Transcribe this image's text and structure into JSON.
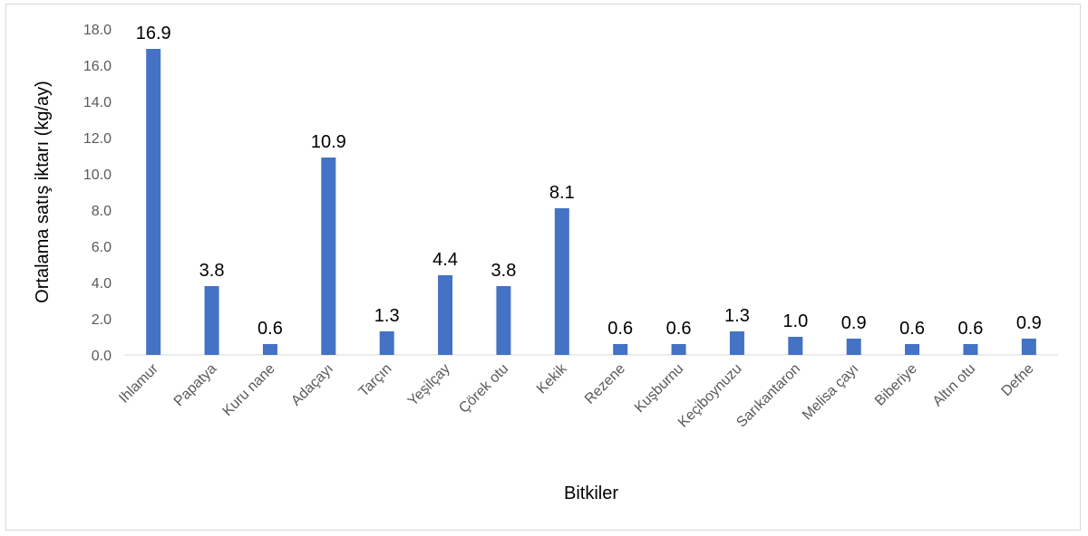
{
  "chart_data": {
    "type": "bar",
    "title": "",
    "xlabel": "Bitkiler",
    "ylabel": "Ortalama satış iktarı (kg/ay)",
    "categories": [
      "Ihlamur",
      "Papatya",
      "Kuru nane",
      "Adaçayı",
      "Tarçın",
      "Yeşilçay",
      "Çörek otu",
      "Kekik",
      "Rezene",
      "Kuşburnu",
      "Keçiboynuzu",
      "Sarıkantaron",
      "Melisa çayı",
      "Biberiye",
      "Altın otu",
      "Defne"
    ],
    "values": [
      16.9,
      3.8,
      0.6,
      10.9,
      1.3,
      4.4,
      3.8,
      8.1,
      0.6,
      0.6,
      1.3,
      1.0,
      0.9,
      0.6,
      0.6,
      0.9
    ],
    "data_labels": [
      "16.9",
      "3.8",
      "0.6",
      "10.9",
      "1.3",
      "4.4",
      "3.8",
      "8.1",
      "0.6",
      "0.6",
      "1.3",
      "1.0",
      "0.9",
      "0.6",
      "0.6",
      "0.9"
    ],
    "ylim": [
      0,
      18
    ],
    "yticks": [
      "0.0",
      "2.0",
      "4.0",
      "6.0",
      "8.0",
      "10.0",
      "12.0",
      "14.0",
      "16.0",
      "18.0"
    ],
    "grid": false,
    "legend": "none",
    "bar_color": "#4472C4",
    "axis_color": "#d9d9d9"
  }
}
